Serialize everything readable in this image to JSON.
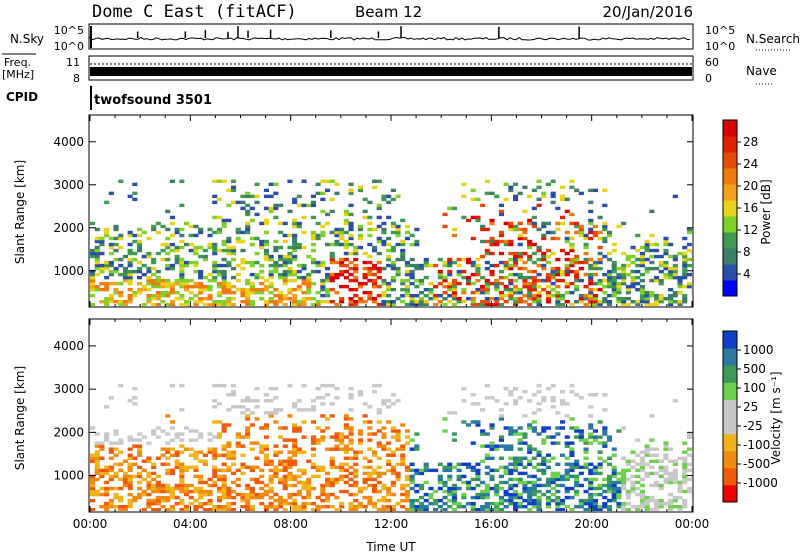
{
  "header": {
    "title": "Dome C East (fitACF)",
    "beam": "Beam 12",
    "date": "20/Jan/2016"
  },
  "nsky_panel": {
    "label": "N.Sky",
    "label_right": "N.Search",
    "ticks": [
      "10^5",
      "10^0"
    ],
    "ticks_right": [
      "10^5",
      "10^0"
    ]
  },
  "freq_panel": {
    "label_line1": "Freq.",
    "label_line2": "[MHz]",
    "left_ticks": [
      "11",
      "8"
    ],
    "right_ticks": [
      "60",
      "0"
    ],
    "label_right": "Nave"
  },
  "cpid_panel": {
    "label": "CPID",
    "program": "twofsound 3501"
  },
  "power_panel": {
    "ylabel": "Slant Range [km]",
    "colorbar_label": "Power [dB]",
    "colorbar_ticks": [
      "28",
      "24",
      "20",
      "16",
      "12",
      "8",
      "4"
    ],
    "colorbar_colors": [
      "#0000ff",
      "#2a4fa8",
      "#3e7d68",
      "#3e9a52",
      "#7fd12a",
      "#e8d21a",
      "#f2a21a",
      "#ef7a10",
      "#e84a0a",
      "#e02000",
      "#d80000"
    ]
  },
  "velocity_panel": {
    "ylabel": "Slant Range [km]",
    "colorbar_label": "Velocity [m s⁻¹]",
    "colorbar_ticks": [
      "1000",
      "500",
      "100",
      "25",
      "-25",
      "-100",
      "-500",
      "-1000"
    ],
    "colorbar_colors": [
      "#ee0000",
      "#f05a0a",
      "#f08a10",
      "#f2b21a",
      "#c8c8c8",
      "#c8c8c8",
      "#6cd04a",
      "#3a9a5a",
      "#2a7aa0",
      "#1040c8"
    ]
  },
  "chart_data": {
    "type": "heatmap",
    "panels": [
      "power",
      "velocity"
    ],
    "x_ticks": [
      "00:00",
      "04:00",
      "08:00",
      "12:00",
      "16:00",
      "20:00",
      "00:00"
    ],
    "xlabel": "Time UT",
    "xlim_hours": [
      0,
      24
    ],
    "y_ticks": [
      1000,
      2000,
      3000,
      4000
    ],
    "ylim_km": [
      180,
      4600
    ],
    "power_range_db": [
      0,
      30
    ],
    "velocity_range": [
      -1000,
      1000
    ],
    "nsky_spike_hours": [
      1.9,
      3.8,
      4.6,
      5.5,
      5.9,
      6.3,
      7.2,
      9.6,
      11.5,
      12.4,
      16.3,
      19.5
    ]
  }
}
